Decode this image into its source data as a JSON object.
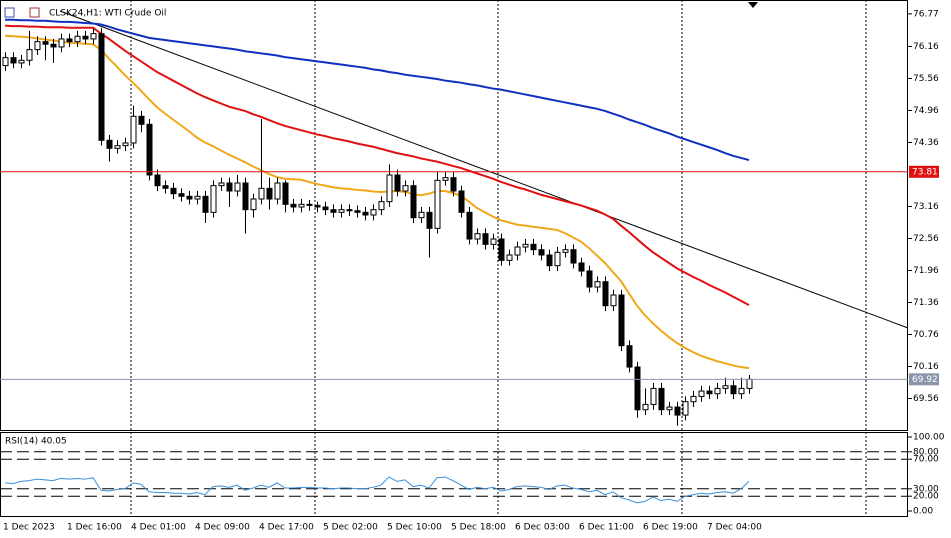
{
  "chart_data": [
    {
      "type": "candlestick",
      "title": "CLSK24,H1:  WTI Crude Oil",
      "categories": [
        "1 Dec 2023",
        null,
        null,
        null,
        null,
        null,
        null,
        null,
        "1 Dec 16:00",
        null,
        null,
        null,
        null,
        null,
        null,
        null,
        "4 Dec 01:00",
        null,
        null,
        null,
        null,
        null,
        null,
        null,
        "4 Dec 09:00",
        null,
        null,
        null,
        null,
        null,
        null,
        null,
        "4 Dec 17:00",
        null,
        null,
        null,
        null,
        null,
        null,
        null,
        "5 Dec 02:00",
        null,
        null,
        null,
        null,
        null,
        null,
        null,
        "5 Dec 10:00",
        null,
        null,
        null,
        null,
        null,
        null,
        null,
        "5 Dec 18:00",
        null,
        null,
        null,
        null,
        null,
        null,
        null,
        "6 Dec 03:00",
        null,
        null,
        null,
        null,
        null,
        null,
        null,
        "6 Dec 11:00",
        null,
        null,
        null,
        null,
        null,
        null,
        null,
        "6 Dec 19:00",
        null,
        null,
        null,
        null,
        null,
        null,
        null,
        "7 Dec 04:00",
        null,
        null,
        null,
        null,
        null
      ],
      "open": [
        75.8,
        75.95,
        75.85,
        75.9,
        76.1,
        76.25,
        76.2,
        76.15,
        76.3,
        76.25,
        76.35,
        76.3,
        76.4,
        74.4,
        74.25,
        74.3,
        74.35,
        74.85,
        74.7,
        73.75,
        73.55,
        73.5,
        73.4,
        73.35,
        73.3,
        73.35,
        73.05,
        73.55,
        73.6,
        73.45,
        73.6,
        73.1,
        73.3,
        73.5,
        73.3,
        73.6,
        73.2,
        73.15,
        73.2,
        73.18,
        73.15,
        73.1,
        73.05,
        73.1,
        73.08,
        73.05,
        73.0,
        73.1,
        73.25,
        73.75,
        73.45,
        73.55,
        72.95,
        73.05,
        72.75,
        73.65,
        73.7,
        73.45,
        73.05,
        72.55,
        72.65,
        72.45,
        72.55,
        72.15,
        72.25,
        72.4,
        72.45,
        72.35,
        72.25,
        72.05,
        72.3,
        72.35,
        72.1,
        71.95,
        71.65,
        71.75,
        71.3,
        71.5,
        70.55,
        70.15,
        69.35,
        69.45,
        69.75,
        69.35,
        69.4,
        69.25,
        69.5,
        69.6,
        69.7,
        69.65,
        69.75,
        69.8,
        69.65,
        69.75
      ],
      "high": [
        76.05,
        76.05,
        76.0,
        76.45,
        76.35,
        76.35,
        76.3,
        76.4,
        76.4,
        76.45,
        76.45,
        76.5,
        76.5,
        74.5,
        74.4,
        74.45,
        75.05,
        74.95,
        74.8,
        73.85,
        73.65,
        73.6,
        73.5,
        73.45,
        73.45,
        73.45,
        73.65,
        73.7,
        73.7,
        73.75,
        73.7,
        73.4,
        74.8,
        73.7,
        73.7,
        73.65,
        73.3,
        73.3,
        73.28,
        73.25,
        73.25,
        73.2,
        73.2,
        73.2,
        73.18,
        73.15,
        73.2,
        73.35,
        73.95,
        73.85,
        73.65,
        73.65,
        73.15,
        73.15,
        73.8,
        73.8,
        73.8,
        73.55,
        73.15,
        72.75,
        72.75,
        72.65,
        72.65,
        72.35,
        72.5,
        72.55,
        72.55,
        72.45,
        72.35,
        72.4,
        72.45,
        72.45,
        72.2,
        72.05,
        71.85,
        71.85,
        71.6,
        71.6,
        70.65,
        70.25,
        69.75,
        69.85,
        69.85,
        69.5,
        69.5,
        69.6,
        69.7,
        69.8,
        69.8,
        69.85,
        69.95,
        69.9,
        69.95,
        70.0
      ],
      "low": [
        75.7,
        75.75,
        75.75,
        75.8,
        76.0,
        75.9,
        75.85,
        76.05,
        76.15,
        76.15,
        76.2,
        76.2,
        74.3,
        74.0,
        74.15,
        74.2,
        74.25,
        74.55,
        73.65,
        73.45,
        73.4,
        73.3,
        73.25,
        73.2,
        73.2,
        72.85,
        72.95,
        73.45,
        73.15,
        73.35,
        72.65,
        72.95,
        73.2,
        73.1,
        73.2,
        73.05,
        73.05,
        73.05,
        73.08,
        73.05,
        73.0,
        72.95,
        72.95,
        72.98,
        72.95,
        72.9,
        72.9,
        73.0,
        73.15,
        73.35,
        73.35,
        72.85,
        72.85,
        72.2,
        72.65,
        73.55,
        73.35,
        72.95,
        72.45,
        72.45,
        72.35,
        72.35,
        72.05,
        72.05,
        72.15,
        72.3,
        72.25,
        72.15,
        71.95,
        71.95,
        72.2,
        72.0,
        71.85,
        71.55,
        71.55,
        71.2,
        71.2,
        70.45,
        70.05,
        69.2,
        69.25,
        69.35,
        69.25,
        69.25,
        69.05,
        69.15,
        69.4,
        69.5,
        69.55,
        69.55,
        69.65,
        69.55,
        69.55,
        69.65
      ],
      "close": [
        75.95,
        75.85,
        75.9,
        76.1,
        76.25,
        76.2,
        76.15,
        76.3,
        76.25,
        76.35,
        76.3,
        76.4,
        74.4,
        74.25,
        74.3,
        74.35,
        74.85,
        74.7,
        73.75,
        73.55,
        73.5,
        73.4,
        73.35,
        73.3,
        73.35,
        73.05,
        73.55,
        73.6,
        73.45,
        73.6,
        73.1,
        73.3,
        73.5,
        73.3,
        73.6,
        73.2,
        73.15,
        73.2,
        73.18,
        73.15,
        73.1,
        73.05,
        73.1,
        73.08,
        73.05,
        73.0,
        73.1,
        73.25,
        73.75,
        73.45,
        73.55,
        72.95,
        73.05,
        72.75,
        73.65,
        73.7,
        73.45,
        73.05,
        72.55,
        72.65,
        72.45,
        72.55,
        72.15,
        72.25,
        72.4,
        72.45,
        72.35,
        72.25,
        72.05,
        72.3,
        72.35,
        72.1,
        71.95,
        71.65,
        71.75,
        71.3,
        71.5,
        70.55,
        70.15,
        69.35,
        69.45,
        69.75,
        69.35,
        69.4,
        69.25,
        69.5,
        69.6,
        69.7,
        69.65,
        69.75,
        69.8,
        69.65,
        69.75,
        69.92
      ],
      "up_color": "#ffffff",
      "down_color": "#000000",
      "edge_color": "#000000",
      "lines": [
        {
          "color": "#f0a81a",
          "values": [
            76.36,
            76.35,
            76.34,
            76.33,
            76.31,
            76.29,
            76.27,
            76.25,
            76.23,
            76.22,
            76.21,
            76.2,
            76.1,
            75.93,
            75.78,
            75.62,
            75.48,
            75.33,
            75.17,
            75.02,
            74.9,
            74.79,
            74.68,
            74.57,
            74.45,
            74.36,
            74.29,
            74.21,
            74.13,
            74.06,
            73.99,
            73.91,
            73.84,
            73.77,
            73.71,
            73.68,
            73.67,
            73.66,
            73.62,
            73.58,
            73.55,
            73.52,
            73.5,
            73.49,
            73.47,
            73.46,
            73.44,
            73.43,
            73.44,
            73.45,
            73.43,
            73.39,
            73.37,
            73.4,
            73.45,
            73.45,
            73.41,
            73.36,
            73.25,
            73.13,
            73.05,
            72.97,
            72.9,
            72.86,
            72.82,
            72.8,
            72.78,
            72.76,
            72.74,
            72.72,
            72.66,
            72.58,
            72.5,
            72.38,
            72.24,
            72.1,
            71.93,
            71.76,
            71.53,
            71.3,
            71.12,
            70.97,
            70.83,
            70.71,
            70.6,
            70.51,
            70.43,
            70.36,
            70.31,
            70.26,
            70.22,
            70.18,
            70.15,
            70.13
          ]
        },
        {
          "color": "#e01010",
          "values": [
            76.55,
            76.54,
            76.54,
            76.53,
            76.53,
            76.52,
            76.52,
            76.52,
            76.51,
            76.51,
            76.51,
            76.51,
            76.4,
            76.3,
            76.19,
            76.08,
            75.98,
            75.88,
            75.78,
            75.68,
            75.6,
            75.52,
            75.44,
            75.36,
            75.28,
            75.21,
            75.15,
            75.09,
            75.03,
            74.99,
            74.95,
            74.89,
            74.84,
            74.78,
            74.72,
            74.67,
            74.63,
            74.59,
            74.55,
            74.51,
            74.48,
            74.44,
            74.41,
            74.38,
            74.34,
            74.31,
            74.28,
            74.24,
            74.2,
            74.16,
            74.13,
            74.1,
            74.06,
            74.03,
            74.0,
            73.96,
            73.92,
            73.88,
            73.83,
            73.78,
            73.73,
            73.68,
            73.62,
            73.57,
            73.52,
            73.48,
            73.43,
            73.38,
            73.34,
            73.3,
            73.26,
            73.22,
            73.18,
            73.13,
            73.08,
            73.01,
            72.93,
            72.8,
            72.68,
            72.55,
            72.42,
            72.3,
            72.2,
            72.1,
            72.0,
            71.92,
            71.84,
            71.77,
            71.69,
            71.62,
            71.55,
            71.47,
            71.39,
            71.31
          ]
        },
        {
          "color": "#1030c0",
          "values": [
            76.66,
            76.66,
            76.65,
            76.65,
            76.64,
            76.64,
            76.63,
            76.62,
            76.62,
            76.61,
            76.6,
            76.59,
            76.57,
            76.53,
            76.48,
            76.44,
            76.4,
            76.36,
            76.32,
            76.3,
            76.28,
            76.26,
            76.24,
            76.22,
            76.2,
            76.18,
            76.16,
            76.14,
            76.12,
            76.1,
            76.07,
            76.05,
            76.03,
            76.01,
            75.99,
            75.96,
            75.94,
            75.92,
            75.9,
            75.88,
            75.86,
            75.84,
            75.82,
            75.8,
            75.78,
            75.76,
            75.73,
            75.71,
            75.68,
            75.66,
            75.63,
            75.61,
            75.59,
            75.57,
            75.55,
            75.52,
            75.5,
            75.48,
            75.45,
            75.43,
            75.4,
            75.37,
            75.35,
            75.32,
            75.29,
            75.26,
            75.23,
            75.2,
            75.17,
            75.14,
            75.11,
            75.08,
            75.05,
            75.02,
            74.99,
            74.95,
            74.9,
            74.85,
            74.79,
            74.74,
            74.69,
            74.63,
            74.58,
            74.53,
            74.47,
            74.42,
            74.37,
            74.32,
            74.27,
            74.22,
            74.16,
            74.11,
            74.07,
            74.03
          ]
        }
      ],
      "hlines": [
        {
          "value": 73.81,
          "color": "#e01010"
        },
        {
          "value": 69.92,
          "color": "#8a96a8"
        }
      ],
      "ylim": [
        68.97,
        77.03
      ],
      "yticks": [
        76.77,
        76.16,
        75.56,
        74.96,
        74.36,
        73.16,
        72.56,
        71.96,
        71.36,
        70.76,
        70.16,
        69.56
      ]
    },
    {
      "type": "line",
      "title": "RSI(14) 40.05",
      "color": "#3c8fd8",
      "values": [
        38,
        37,
        40,
        41,
        43,
        42,
        41,
        44,
        43,
        44,
        43,
        45,
        28,
        27,
        29,
        30,
        38,
        36,
        26,
        25,
        25,
        24,
        24,
        23,
        25,
        22,
        33,
        34,
        32,
        35,
        28,
        31,
        35,
        32,
        38,
        31,
        31,
        32,
        32,
        31,
        31,
        30,
        31,
        31,
        30,
        30,
        32,
        35,
        46,
        40,
        42,
        33,
        35,
        31,
        45,
        46,
        41,
        35,
        29,
        32,
        30,
        32,
        27,
        29,
        33,
        34,
        33,
        32,
        29,
        34,
        35,
        31,
        29,
        26,
        28,
        22,
        26,
        18,
        15,
        11,
        13,
        19,
        14,
        16,
        13,
        20,
        22,
        24,
        23,
        25,
        26,
        24,
        30,
        40.05
      ],
      "ylim": [
        0,
        100
      ],
      "yticks": [
        {
          "value": 100,
          "label": "100.00"
        },
        {
          "value": 80,
          "label": "80.00"
        },
        {
          "value": 70,
          "label": "70.00"
        },
        {
          "value": 30,
          "label": "30.00"
        },
        {
          "value": 20,
          "label": "20.00"
        },
        {
          "value": 0,
          "label": "0.00"
        }
      ],
      "levels": [
        80,
        70,
        30,
        20
      ]
    }
  ]
}
